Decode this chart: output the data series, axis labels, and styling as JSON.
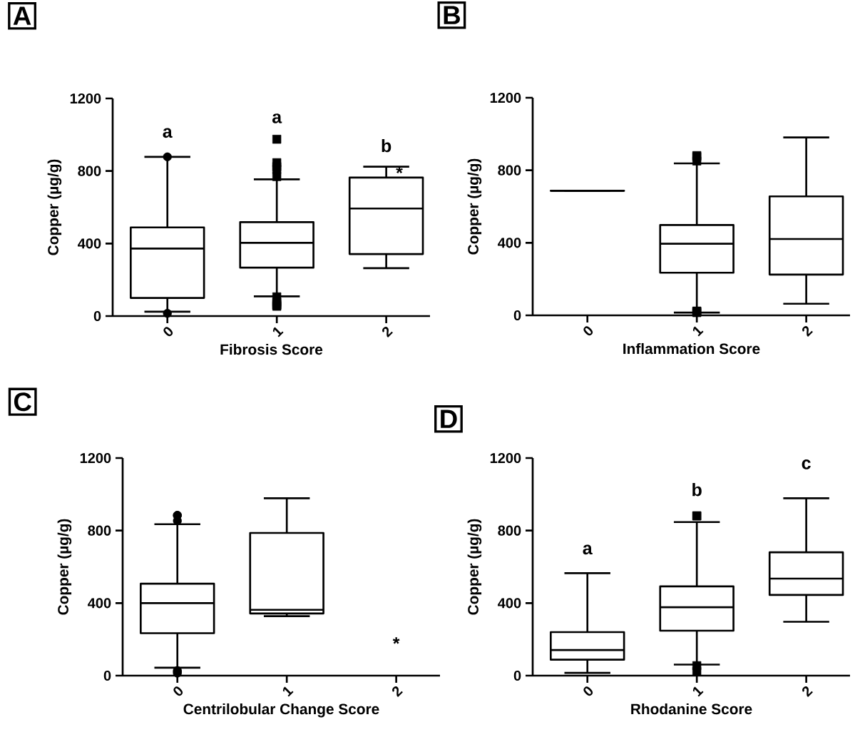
{
  "chart_data": [
    {
      "type": "box",
      "title": "A",
      "xlabel": "Fibrosis Score",
      "ylabel": "Copper (µg/g)",
      "categories": [
        "0",
        "1",
        "2"
      ],
      "ylim": [
        0,
        1200
      ],
      "yticks": [
        0,
        400,
        800,
        1200
      ],
      "series": [
        {
          "color": "#000000",
          "marker": "circle",
          "boxes": [
            {
              "low": 24,
              "q1": 100,
              "median": 372,
              "q3": 489,
              "high": 878,
              "outliers": [
                878,
                15
              ]
            },
            null,
            null
          ]
        },
        {
          "color": "#000000",
          "marker": "square",
          "boxes": [
            null,
            {
              "low": 109,
              "q1": 267,
              "median": 404,
              "q3": 518,
              "high": 754,
              "outliers": [
                975,
                846,
                824,
                809,
                769,
                106,
                76,
                63,
                60,
                54
              ]
            },
            {
              "low": 264,
              "q1": 342,
              "median": 593,
              "q3": 764,
              "high": 824
            }
          ]
        }
      ],
      "annotations": [
        "a",
        "a",
        "b",
        "*"
      ]
    },
    {
      "type": "box",
      "title": "B",
      "xlabel": "Inflammation Score",
      "ylabel": "Copper (µg/g)",
      "categories": [
        "0",
        "1",
        "2"
      ],
      "ylim": [
        0,
        1200
      ],
      "yticks": [
        0,
        400,
        800,
        1200
      ],
      "series": [
        {
          "color": "#000000",
          "marker": "square",
          "boxes": [
            {
              "low": 687,
              "q1": 687,
              "median": 687,
              "q3": 687,
              "high": 687
            },
            {
              "low": 15,
              "q1": 235,
              "median": 395,
              "q3": 498,
              "high": 838,
              "outliers": [
                881,
                875,
                851,
                23,
                15,
                23
              ]
            },
            {
              "low": 64,
              "q1": 225,
              "median": 421,
              "q3": 656,
              "high": 981
            }
          ]
        }
      ]
    },
    {
      "type": "box",
      "title": "C",
      "xlabel": "Centrilobular Change Score",
      "ylabel": "Copper (µg/g)",
      "categories": [
        "0",
        "1",
        "2"
      ],
      "ylim": [
        0,
        1200
      ],
      "yticks": [
        0,
        400,
        800,
        1200
      ],
      "series": [
        {
          "color": "#000000",
          "marker": "circle",
          "boxes": [
            {
              "low": 44,
              "q1": 234,
              "median": 400,
              "q3": 507,
              "high": 835,
              "outliers": [
                884,
                884,
                854,
                28,
                21,
                14
              ]
            },
            {
              "low": 328,
              "q1": 343,
              "median": 363,
              "q3": 787,
              "high": 978
            },
            null
          ]
        }
      ],
      "annotations": [
        "*"
      ]
    },
    {
      "type": "box",
      "title": "D",
      "xlabel": "Rhodanine Score",
      "ylabel": "Copper (µg/g)",
      "categories": [
        "0",
        "1",
        "2"
      ],
      "ylim": [
        0,
        1200
      ],
      "yticks": [
        0,
        400,
        800,
        1200
      ],
      "series": [
        {
          "color": "#000000",
          "marker": "square",
          "boxes": [
            {
              "low": 15,
              "q1": 88,
              "median": 141,
              "q3": 240,
              "high": 565
            },
            {
              "low": 61,
              "q1": 248,
              "median": 377,
              "q3": 492,
              "high": 847,
              "outliers": [
                881,
                881,
                55,
                23
              ]
            },
            {
              "low": 297,
              "q1": 445,
              "median": 535,
              "q3": 680,
              "high": 978
            }
          ]
        }
      ],
      "annotations": [
        "a",
        "b",
        "c"
      ]
    }
  ]
}
